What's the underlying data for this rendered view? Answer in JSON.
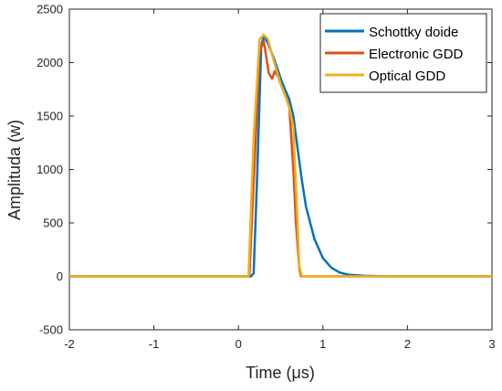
{
  "chart_data": {
    "type": "line",
    "xlabel": "Time (μs)",
    "ylabel": "Amplituda (w)",
    "xlim": [
      -2,
      3
    ],
    "ylim": [
      -500,
      2500
    ],
    "xticks": [
      -2,
      -1,
      0,
      1,
      2,
      3
    ],
    "yticks": [
      -500,
      0,
      500,
      1000,
      1500,
      2000,
      2500
    ],
    "grid": false,
    "legend_position": "top-right",
    "series": [
      {
        "name": "Schottky doide",
        "color": "#0072BD",
        "x": [
          -2.0,
          0.15,
          0.18,
          0.22,
          0.27,
          0.3,
          0.35,
          0.4,
          0.45,
          0.5,
          0.55,
          0.6,
          0.65,
          0.7,
          0.75,
          0.8,
          0.9,
          1.0,
          1.1,
          1.2,
          1.3,
          1.5,
          1.8,
          2.2,
          3.0
        ],
        "y": [
          0,
          0,
          30,
          900,
          2150,
          2250,
          2180,
          2080,
          1970,
          1850,
          1750,
          1660,
          1500,
          1200,
          900,
          650,
          350,
          170,
          80,
          35,
          15,
          5,
          0,
          0,
          0
        ]
      },
      {
        "name": "Electronic GDD",
        "color": "#D95319",
        "x": [
          -2.0,
          0.13,
          0.2,
          0.25,
          0.3,
          0.33,
          0.36,
          0.4,
          0.43,
          0.47,
          0.5,
          0.55,
          0.6,
          0.65,
          0.68,
          0.72,
          0.74,
          0.76,
          2.8,
          3.0
        ],
        "y": [
          0,
          0,
          1200,
          2100,
          2200,
          2050,
          1900,
          1850,
          1920,
          1870,
          1800,
          1700,
          1600,
          1000,
          500,
          80,
          0,
          0,
          0,
          0
        ]
      },
      {
        "name": "Optical GDD",
        "color": "#EDB120",
        "x": [
          -2.0,
          0.12,
          0.18,
          0.25,
          0.3,
          0.35,
          0.4,
          0.45,
          0.5,
          0.55,
          0.6,
          0.65,
          0.7,
          0.72,
          0.75,
          3.0
        ],
        "y": [
          0,
          0,
          1300,
          2220,
          2260,
          2220,
          2070,
          1930,
          1800,
          1700,
          1580,
          1400,
          500,
          100,
          0,
          0
        ]
      }
    ]
  }
}
